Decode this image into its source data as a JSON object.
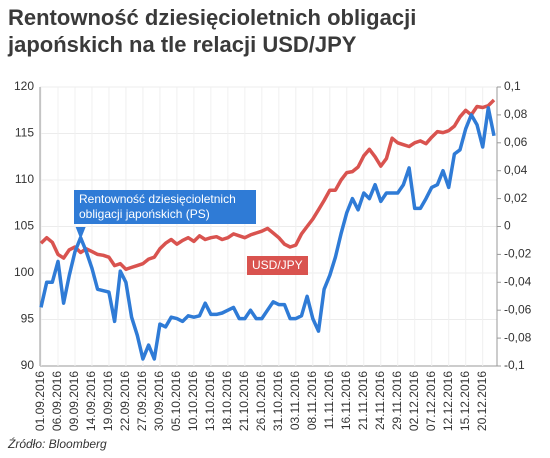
{
  "chart_data": {
    "type": "line",
    "title": "Rentowność dziesięcioletnich obligacji japońskich na tle relacji USD/JPY",
    "source": "Źródło: Bloomberg",
    "categories": [
      "01.09.2016",
      null,
      null,
      "06.09.2016",
      null,
      null,
      "09.09.2016",
      null,
      null,
      "14.09.2016",
      null,
      null,
      "19.09.2016",
      null,
      null,
      "22.09.2016",
      null,
      null,
      "27.09.2016",
      null,
      null,
      "30.09.2016",
      null,
      null,
      "05.10.2016",
      null,
      null,
      "10.10.2016",
      null,
      null,
      "13.10.2016",
      null,
      null,
      "18.10.2016",
      null,
      null,
      "21.10.2016",
      null,
      null,
      "26.10.2016",
      null,
      null,
      "31.10.2016",
      null,
      null,
      "03.11.2016",
      null,
      null,
      "08.11.2016",
      null,
      null,
      "11.11.2016",
      null,
      null,
      "16.11.2016",
      null,
      null,
      "21.11.2016",
      null,
      null,
      "24.11.2016",
      null,
      null,
      "29.11.2016",
      null,
      null,
      "02.12.2016",
      null,
      null,
      "07.12.2016",
      null,
      null,
      "12.12.2016",
      null,
      null,
      "15.12.2016",
      null,
      null,
      "20.12.2016",
      null,
      null
    ],
    "series": [
      {
        "name": "USD/JPY",
        "color": "#d9534f",
        "values": [
          103.2,
          103.8,
          103.3,
          102.0,
          101.6,
          102.5,
          102.8,
          102.2,
          102.6,
          102.3,
          102.0,
          101.9,
          101.7,
          100.8,
          101.0,
          100.4,
          100.6,
          100.8,
          101.0,
          101.5,
          101.7,
          102.6,
          103.2,
          103.6,
          103.1,
          103.5,
          103.8,
          103.4,
          104.0,
          103.6,
          103.8,
          103.9,
          103.6,
          103.8,
          104.2,
          104.0,
          103.8,
          104.1,
          104.3,
          104.5,
          104.8,
          104.3,
          103.8,
          103.1,
          102.8,
          103.0,
          104.2,
          105.0,
          105.8,
          106.8,
          107.8,
          108.9,
          108.9,
          110.0,
          110.8,
          110.9,
          111.4,
          112.6,
          113.3,
          112.5,
          111.5,
          112.3,
          114.5,
          114.0,
          113.8,
          113.6,
          114.0,
          114.2,
          113.9,
          114.6,
          115.2,
          115.1,
          115.3,
          115.8,
          116.8,
          117.5,
          117.0,
          117.9,
          117.8,
          118.0,
          118.6
        ]
      },
      {
        "name": "Rentowność dziesięcioletnich obligacji japońskich (PS)",
        "color": "#2f7bd6",
        "axis": "y2",
        "values": [
          -0.058,
          -0.04,
          -0.04,
          -0.025,
          -0.055,
          -0.035,
          -0.018,
          -0.008,
          -0.018,
          -0.03,
          -0.045,
          -0.046,
          -0.047,
          -0.068,
          -0.032,
          -0.04,
          -0.065,
          -0.078,
          -0.095,
          -0.085,
          -0.095,
          -0.07,
          -0.072,
          -0.065,
          -0.066,
          -0.068,
          -0.064,
          -0.065,
          -0.064,
          -0.055,
          -0.063,
          -0.063,
          -0.062,
          -0.06,
          -0.058,
          -0.066,
          -0.066,
          -0.06,
          -0.066,
          -0.066,
          -0.06,
          -0.054,
          -0.056,
          -0.056,
          -0.066,
          -0.066,
          -0.064,
          -0.05,
          -0.066,
          -0.075,
          -0.045,
          -0.035,
          -0.022,
          -0.005,
          0.01,
          0.02,
          0.012,
          0.024,
          0.02,
          0.03,
          0.018,
          0.024,
          0.024,
          0.024,
          0.03,
          0.042,
          0.013,
          0.013,
          0.02,
          0.028,
          0.03,
          0.04,
          0.028,
          0.052,
          0.055,
          0.07,
          0.08,
          0.073,
          0.057,
          0.085,
          0.065
        ]
      }
    ],
    "ylim": [
      90,
      120
    ],
    "yticks": [
      90,
      95,
      100,
      105,
      110,
      115,
      120
    ],
    "y2lim": [
      -0.1,
      0.1
    ],
    "y2ticks": [
      {
        "value": -0.1,
        "label": "-0,1"
      },
      {
        "value": -0.08,
        "label": "-0,08"
      },
      {
        "value": -0.06,
        "label": "-0,06"
      },
      {
        "value": -0.04,
        "label": "-0,04"
      },
      {
        "value": -0.02,
        "label": "-0,02"
      },
      0,
      {
        "value": 0.02,
        "label": "0,02"
      },
      {
        "value": 0.04,
        "label": "0,04"
      },
      {
        "value": 0.06,
        "label": "0,06"
      },
      {
        "value": 0.08,
        "label": "0,08"
      },
      {
        "value": 0.1,
        "label": "0,1"
      }
    ]
  }
}
